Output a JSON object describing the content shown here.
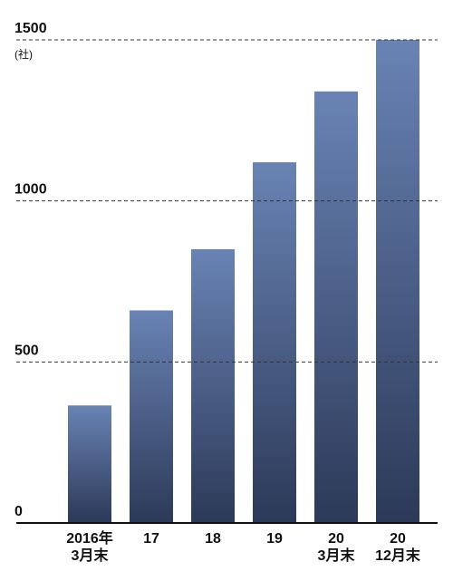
{
  "chart_data": {
    "type": "bar",
    "unit_label": "(社)",
    "categories": [
      "2016年\n3月末",
      "17",
      "18",
      "19",
      "20\n3月末",
      "20\n12月末"
    ],
    "values": [
      365,
      660,
      850,
      1120,
      1340,
      1500
    ],
    "gradient": [
      "#6983b4",
      "#2c3958"
    ],
    "ylim": [
      0,
      1500
    ],
    "yticks": [
      0,
      500,
      1000,
      1500
    ],
    "grid": true
  }
}
